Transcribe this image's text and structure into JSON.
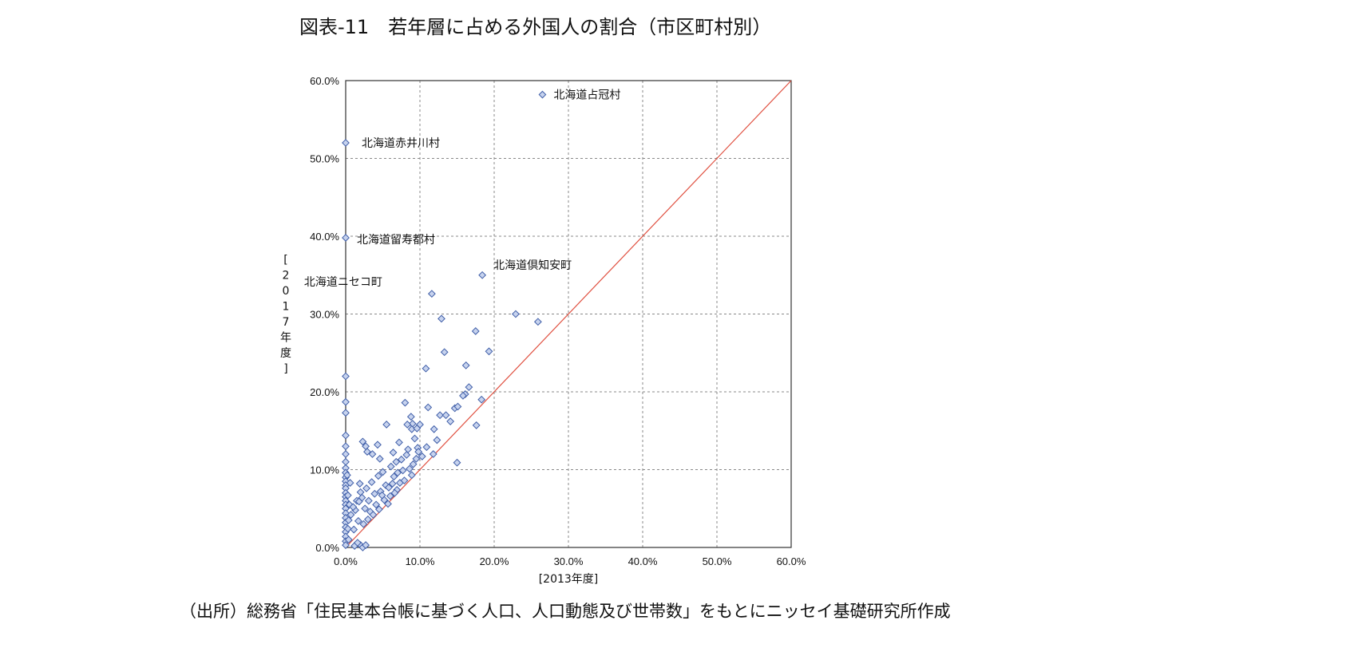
{
  "figure": {
    "title": "図表-11　若年層に占める外国人の割合（市区町村別）",
    "source": "（出所）総務省「住民基本台帳に基づく人口、人口動態及び世帯数」をもとにニッセイ基礎研究所作成"
  },
  "chart_data": {
    "type": "scatter",
    "xlabel": "[2013年度]",
    "ylabel": "[2017年度]",
    "xlim": [
      0,
      60
    ],
    "ylim": [
      0,
      60
    ],
    "x_ticks": [
      "0.0%",
      "10.0%",
      "20.0%",
      "30.0%",
      "40.0%",
      "50.0%",
      "60.0%"
    ],
    "y_ticks": [
      "0.0%",
      "10.0%",
      "20.0%",
      "30.0%",
      "40.0%",
      "50.0%",
      "60.0%"
    ],
    "grid": true,
    "marker": "diamond",
    "colors": {
      "point_fill": "#c7d3ee",
      "point_stroke": "#3f5ea8",
      "reference_line": "#e05040",
      "grid": "#888888"
    },
    "reference_line": {
      "from": [
        0,
        0
      ],
      "to": [
        60,
        60
      ]
    },
    "annotations": [
      {
        "text": "北海道占冠村",
        "x": 26.5,
        "y": 58.2
      },
      {
        "text": "北海道赤井川村",
        "x": 0,
        "y": 52.0
      },
      {
        "text": "北海道留寿都村",
        "x": 0,
        "y": 39.8
      },
      {
        "text": "北海道倶知安町",
        "x": 18.4,
        "y": 35.0
      },
      {
        "text": "北海道ニセコ町",
        "x": 11.6,
        "y": 32.6
      }
    ],
    "points": [
      [
        26.5,
        58.2
      ],
      [
        0,
        52.0
      ],
      [
        0,
        39.8
      ],
      [
        18.4,
        35.0
      ],
      [
        11.6,
        32.6
      ],
      [
        22.9,
        30.0
      ],
      [
        25.9,
        29.0
      ],
      [
        12.9,
        29.4
      ],
      [
        17.5,
        27.8
      ],
      [
        19.3,
        25.2
      ],
      [
        13.3,
        25.1
      ],
      [
        16.2,
        23.4
      ],
      [
        10.8,
        23.0
      ],
      [
        0,
        22.0
      ],
      [
        16.6,
        20.6
      ],
      [
        16.1,
        19.7
      ],
      [
        15.8,
        19.5
      ],
      [
        18.3,
        19.0
      ],
      [
        0,
        18.7
      ],
      [
        8.0,
        18.6
      ],
      [
        11.1,
        18.0
      ],
      [
        14.7,
        17.9
      ],
      [
        15.1,
        18.1
      ],
      [
        0,
        17.3
      ],
      [
        12.7,
        17.0
      ],
      [
        13.5,
        17.0
      ],
      [
        8.8,
        16.8
      ],
      [
        14.1,
        16.2
      ],
      [
        9.0,
        15.9
      ],
      [
        8.3,
        15.8
      ],
      [
        5.5,
        15.8
      ],
      [
        10.0,
        15.8
      ],
      [
        8.9,
        15.2
      ],
      [
        9.6,
        15.3
      ],
      [
        17.6,
        15.7
      ],
      [
        11.9,
        15.2
      ],
      [
        12.3,
        13.8
      ],
      [
        9.3,
        14.0
      ],
      [
        0,
        14.4
      ],
      [
        7.2,
        13.5
      ],
      [
        2.3,
        13.6
      ],
      [
        2.7,
        13.0
      ],
      [
        9.7,
        12.8
      ],
      [
        8.4,
        12.6
      ],
      [
        10.9,
        12.9
      ],
      [
        0,
        13.0
      ],
      [
        0,
        12.0
      ],
      [
        4.3,
        13.2
      ],
      [
        3.6,
        12.0
      ],
      [
        4.6,
        11.4
      ],
      [
        2.9,
        12.3
      ],
      [
        11.8,
        12.0
      ],
      [
        15.0,
        10.9
      ],
      [
        0,
        11.0
      ],
      [
        0,
        10.2
      ],
      [
        0,
        9.6
      ],
      [
        0,
        9.0
      ],
      [
        0,
        8.5
      ],
      [
        0,
        8.0
      ],
      [
        0,
        7.6
      ],
      [
        0,
        7.0
      ],
      [
        0,
        6.5
      ],
      [
        0,
        6.0
      ],
      [
        0,
        5.5
      ],
      [
        0,
        5.0
      ],
      [
        0,
        4.4
      ],
      [
        0,
        3.8
      ],
      [
        0,
        3.2
      ],
      [
        0,
        2.6
      ],
      [
        0,
        2.0
      ],
      [
        0,
        1.4
      ],
      [
        0,
        0.8
      ],
      [
        0,
        0.3
      ],
      [
        0.4,
        3.5
      ],
      [
        0.6,
        8.3
      ],
      [
        0.5,
        5.5
      ],
      [
        0.4,
        1.0
      ],
      [
        0.2,
        9.3
      ],
      [
        0.3,
        6.7
      ],
      [
        0.7,
        4.2
      ],
      [
        0.3,
        2.4
      ],
      [
        1.2,
        0.2
      ],
      [
        2.0,
        0.3
      ],
      [
        2.3,
        0.0
      ],
      [
        2.7,
        0.3
      ],
      [
        1.6,
        0.6
      ],
      [
        1.9,
        8.2
      ],
      [
        1.5,
        6.0
      ],
      [
        2.0,
        7.1
      ],
      [
        3.5,
        8.4
      ],
      [
        4.4,
        9.2
      ],
      [
        5.0,
        9.7
      ],
      [
        6.1,
        10.4
      ],
      [
        6.8,
        11.0
      ],
      [
        7.5,
        11.3
      ],
      [
        8.2,
        11.9
      ],
      [
        6.5,
        9.1
      ],
      [
        7.7,
        9.9
      ],
      [
        8.6,
        10.1
      ],
      [
        9.1,
        10.7
      ],
      [
        7.3,
        8.3
      ],
      [
        8.9,
        9.3
      ],
      [
        9.5,
        11.4
      ],
      [
        3.1,
        6.0
      ],
      [
        3.9,
        6.9
      ],
      [
        4.7,
        7.2
      ],
      [
        5.4,
        8.0
      ],
      [
        6.3,
        8.2
      ],
      [
        2.6,
        5.0
      ],
      [
        3.3,
        4.6
      ],
      [
        4.1,
        5.5
      ],
      [
        5.2,
        6.1
      ],
      [
        6.0,
        6.6
      ],
      [
        6.9,
        7.4
      ],
      [
        7.9,
        8.6
      ],
      [
        1.1,
        2.3
      ],
      [
        1.7,
        3.4
      ],
      [
        2.4,
        3.0
      ],
      [
        3.0,
        3.6
      ],
      [
        3.7,
        4.2
      ],
      [
        4.5,
        4.9
      ],
      [
        5.7,
        5.6
      ],
      [
        6.6,
        7.0
      ],
      [
        7.0,
        9.6
      ],
      [
        1.3,
        4.8
      ],
      [
        2.2,
        6.4
      ],
      [
        2.8,
        7.6
      ],
      [
        1.0,
        5.2
      ],
      [
        1.8,
        5.9
      ],
      [
        5.8,
        7.7
      ],
      [
        4.9,
        6.7
      ],
      [
        9.8,
        12.3
      ],
      [
        10.3,
        11.7
      ],
      [
        6.4,
        12.2
      ]
    ]
  }
}
